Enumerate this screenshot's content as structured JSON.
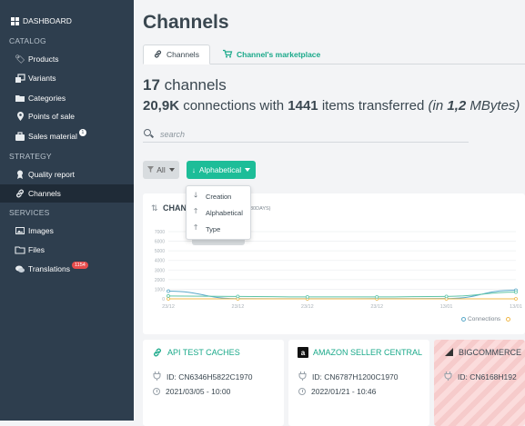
{
  "sidebar": {
    "dashboard": "DASHBOARD",
    "sections": {
      "catalog": "CATALOG",
      "strategy": "STRATEGY",
      "services": "SERVICES"
    },
    "items": {
      "products": "Products",
      "variants": "Variants",
      "categories": "Categories",
      "points_of_sale": "Points of sale",
      "sales_material": "Sales material",
      "sales_material_badge": "1",
      "quality_report": "Quality report",
      "channels": "Channels",
      "images": "Images",
      "files": "Files",
      "translations": "Translations",
      "translations_badge": "1154"
    }
  },
  "main": {
    "title": "Channels",
    "tabs": {
      "channels": "Channels",
      "marketplace": "Channel's marketplace"
    },
    "stats": {
      "channel_count": "17",
      "channel_label": "channels",
      "connections": "20,9K",
      "connections_label": "connections with",
      "items": "1441",
      "items_label": "items transferred",
      "size_prefix": "(in",
      "size_value": "1,2",
      "size_unit": "MBytes)"
    },
    "search": {
      "placeholder": "search"
    },
    "filters": {
      "all_label": "All",
      "sort_label": "Alphabetical"
    },
    "sort_menu": {
      "creation": "Creation",
      "alphabetical": "Alphabetical",
      "type": "Type"
    }
  },
  "chart_data": {
    "type": "line",
    "title": "CHAN",
    "subtitle": "30DAYS)",
    "x": [
      "23/12",
      "23/12",
      "23/12",
      "23/12",
      "13/01",
      "13/01"
    ],
    "ylim": [
      0,
      7000
    ],
    "yticks": [
      "7000",
      "6000",
      "5000",
      "4000",
      "3000",
      "2000",
      "1000",
      "0"
    ],
    "series": [
      {
        "name": "Connections",
        "color": "#5aa9c9",
        "values": [
          800,
          20,
          10,
          20,
          30,
          900
        ]
      },
      {
        "name": "",
        "color": "#f0b84a",
        "values": [
          0,
          0,
          0,
          0,
          0,
          0
        ]
      },
      {
        "name": "",
        "color": "#5ec4a6",
        "values": [
          300,
          250,
          200,
          200,
          250,
          700
        ]
      }
    ],
    "legend": "bottom-right",
    "grid": true
  },
  "cards": [
    {
      "name": "API TEST CACHES",
      "id": "ID: CN6346H5822C1970",
      "date": "2021/03/05 - 10:00"
    },
    {
      "name": "AMAZON SELLER CENTRAL",
      "id": "ID: CN6787H1200C1970",
      "date": "2022/01/21 - 10:46"
    },
    {
      "name": "BIGCOMMERCE",
      "id": "ID: CN6168H192"
    }
  ],
  "colors": {
    "sidebar_bg": "#2e3e4e",
    "accent": "#1dbd98",
    "badge": "#e74c4c"
  }
}
